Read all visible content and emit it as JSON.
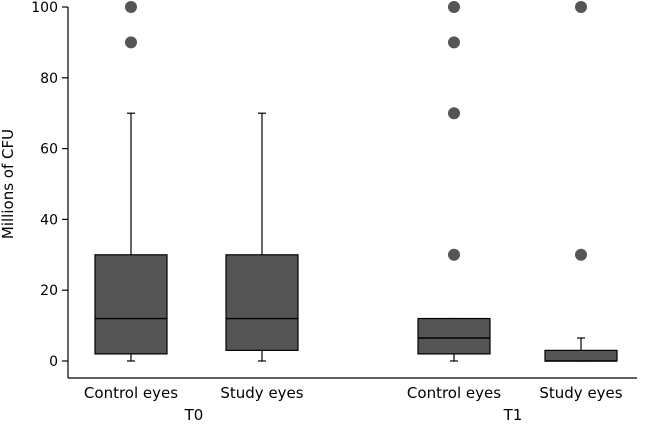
{
  "chart_data": {
    "type": "boxplot",
    "title": "",
    "ylabel": "Millions of CFU",
    "ylim": [
      0,
      100
    ],
    "yticks": [
      0,
      20,
      40,
      60,
      80,
      100
    ],
    "boxes": [
      {
        "group": "T0",
        "category": "Control eyes",
        "min": 0,
        "q1": 2,
        "median": 12,
        "q3": 30,
        "max": 70,
        "outliers": [
          90,
          100
        ]
      },
      {
        "group": "T0",
        "category": "Study eyes",
        "min": 0,
        "q1": 3,
        "median": 12,
        "q3": 30,
        "max": 70,
        "outliers": []
      },
      {
        "group": "T1",
        "category": "Control eyes",
        "min": 0,
        "q1": 2,
        "median": 6.5,
        "q3": 12,
        "max": 12,
        "outliers": [
          30,
          70,
          90,
          100
        ]
      },
      {
        "group": "T1",
        "category": "Study eyes",
        "min": 0,
        "q1": 0,
        "median": 0,
        "q3": 3,
        "max": 6.5,
        "outliers": [
          30,
          100
        ]
      }
    ],
    "groups": [
      "T0",
      "T1"
    ]
  }
}
